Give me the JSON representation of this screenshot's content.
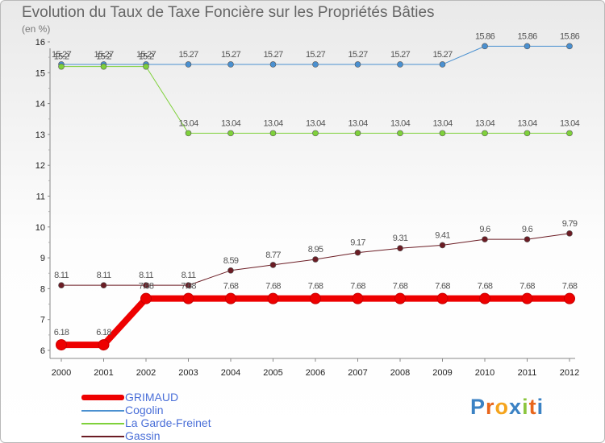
{
  "chart_data": {
    "type": "line",
    "title": "Evolution du Taux de Taxe Foncière sur les Propriétés Bâties",
    "ylabel": "(en %)",
    "xlabel": "",
    "ylim": [
      6,
      16
    ],
    "yticks": [
      "6",
      "7",
      "8",
      "9",
      "10",
      "11",
      "12",
      "13",
      "14",
      "15",
      "16"
    ],
    "grid": false,
    "legend_position": "bottom-left",
    "categories": [
      "2000",
      "2001",
      "2002",
      "2003",
      "2004",
      "2005",
      "2006",
      "2007",
      "2008",
      "2009",
      "2010",
      "2011",
      "2012"
    ],
    "series": [
      {
        "name": "Cogolin",
        "color": "#4a90d0",
        "width": 1,
        "values": [
          15.27,
          15.27,
          15.27,
          15.27,
          15.27,
          15.27,
          15.27,
          15.27,
          15.27,
          15.27,
          15.86,
          15.86,
          15.86
        ],
        "labels": [
          "15.27",
          "15.27",
          "15.27",
          "15.27",
          "15.27",
          "15.27",
          "15.27",
          "15.27",
          "15.27",
          "15.27",
          "15.86",
          "15.86",
          "15.86"
        ]
      },
      {
        "name": "La Garde-Freinet",
        "color": "#7fd13b",
        "width": 1,
        "values": [
          15.2,
          15.2,
          15.2,
          13.04,
          13.04,
          13.04,
          13.04,
          13.04,
          13.04,
          13.04,
          13.04,
          13.04,
          13.04
        ],
        "labels": [
          "15.2",
          "15.2",
          "15.2",
          "13.04",
          "13.04",
          "13.04",
          "13.04",
          "13.04",
          "13.04",
          "13.04",
          "13.04",
          "13.04",
          "13.04"
        ]
      },
      {
        "name": "Gassin",
        "color": "#6b1c24",
        "width": 1,
        "values": [
          8.11,
          8.11,
          8.11,
          8.11,
          8.59,
          8.77,
          8.95,
          9.17,
          9.31,
          9.41,
          9.6,
          9.6,
          9.79
        ],
        "labels": [
          "8.11",
          "8.11",
          "8.11",
          "8.11",
          "8.59",
          "8.77",
          "8.95",
          "9.17",
          "9.31",
          "9.41",
          "9.6",
          "9.6",
          "9.79"
        ]
      },
      {
        "name": "GRIMAUD",
        "color": "#ee0000",
        "width": 8,
        "values": [
          6.18,
          6.18,
          7.68,
          7.68,
          7.68,
          7.68,
          7.68,
          7.68,
          7.68,
          7.68,
          7.68,
          7.68,
          7.68
        ],
        "labels": [
          "6.18",
          "6.18",
          "7.68",
          "7.68",
          "7.68",
          "7.68",
          "7.68",
          "7.68",
          "7.68",
          "7.68",
          "7.68",
          "7.68",
          "7.68"
        ]
      }
    ],
    "legend": [
      "GRIMAUD",
      "Cogolin",
      "La Garde-Freinet",
      "Gassin"
    ]
  },
  "brand": {
    "name": "Proxiti",
    "letters": [
      "P",
      "r",
      "o",
      "x",
      "i",
      "t",
      "i"
    ],
    "colors": [
      "#3b82c4",
      "#e8661c",
      "#f5a41c",
      "#3b82c4",
      "#8cc63f",
      "#e8661c",
      "#3b82c4"
    ]
  }
}
